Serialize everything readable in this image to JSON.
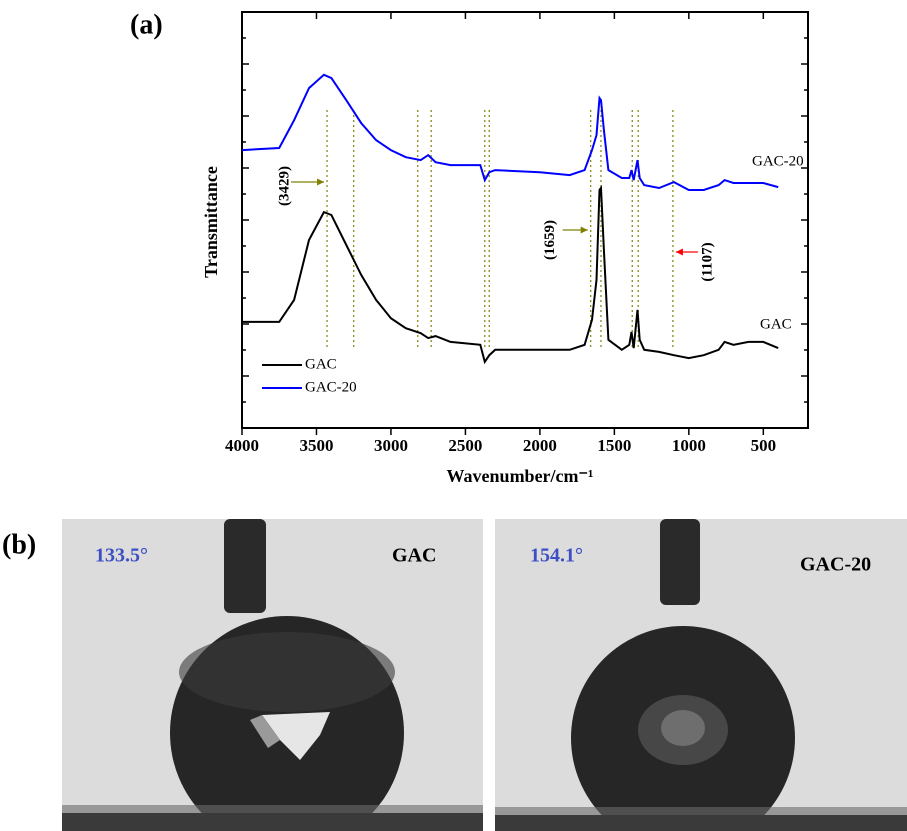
{
  "chart_data": {
    "type": "line",
    "panel_label": "(a)",
    "xlabel": "Wavenumber/cm⁻¹",
    "ylabel": "Transmittance",
    "xlim": [
      4000,
      200
    ],
    "xticks": [
      4000,
      3500,
      3000,
      2500,
      2000,
      1500,
      1000,
      500
    ],
    "ylim": [
      0,
      100
    ],
    "x": [
      4000,
      3750,
      3650,
      3550,
      3450,
      3400,
      3300,
      3200,
      3100,
      3000,
      2900,
      2800,
      2750,
      2700,
      2600,
      2400,
      2370,
      2340,
      2300,
      2000,
      1800,
      1700,
      1650,
      1620,
      1600,
      1590,
      1570,
      1540,
      1450,
      1400,
      1385,
      1370,
      1345,
      1330,
      1300,
      1200,
      1100,
      1000,
      900,
      800,
      760,
      700,
      600,
      500,
      400
    ],
    "series": [
      {
        "name": "GAC",
        "color": "#000000",
        "values": [
          25.5,
          25.5,
          30.8,
          45.2,
          51.9,
          51.2,
          44,
          36.8,
          30.8,
          26.4,
          24,
          22.8,
          21.6,
          22.1,
          20.7,
          20,
          15.9,
          17.5,
          18.8,
          18.8,
          18.8,
          20,
          26,
          35.6,
          57.2,
          57.7,
          42.8,
          21.2,
          18.8,
          20,
          23.1,
          19.2,
          28.4,
          21.2,
          18.8,
          18.3,
          17.5,
          16.8,
          17.5,
          18.8,
          20.7,
          20,
          20.7,
          20.7,
          19.2
        ]
      },
      {
        "name": "GAC-20",
        "color": "#0000ff",
        "values": [
          66.8,
          67.3,
          74,
          81.7,
          84.9,
          84.1,
          78.8,
          73.3,
          69.2,
          66.8,
          65.1,
          64.4,
          65.6,
          63.9,
          63.2,
          63.2,
          59.6,
          61.5,
          62,
          61.5,
          60.8,
          62,
          66.8,
          70.4,
          79.3,
          78.8,
          71.6,
          62,
          60.1,
          60.1,
          62,
          59.6,
          64.4,
          60.1,
          58.4,
          57.7,
          59.1,
          57.2,
          57.2,
          58.4,
          59.6,
          58.9,
          58.9,
          58.9,
          57.9
        ]
      }
    ],
    "reference_lines": [
      3429,
      3250,
      2820,
      2730,
      2370,
      2340,
      1659,
      1590,
      1380,
      1340,
      1107
    ],
    "reference_color": "#808000",
    "annotations": [
      {
        "text": "(3429)",
        "x": 3429,
        "color": "#808000"
      },
      {
        "text": "(1659)",
        "x": 1659,
        "color": "#808000"
      },
      {
        "text": "(1107)",
        "x": 1107,
        "color": "#ff0000"
      }
    ],
    "legend": "lower left"
  },
  "photos": {
    "panel_label": "(b)",
    "items": [
      {
        "angle": "133.5°",
        "name": "GAC"
      },
      {
        "angle": "154.1°",
        "name": "GAC-20"
      }
    ]
  }
}
